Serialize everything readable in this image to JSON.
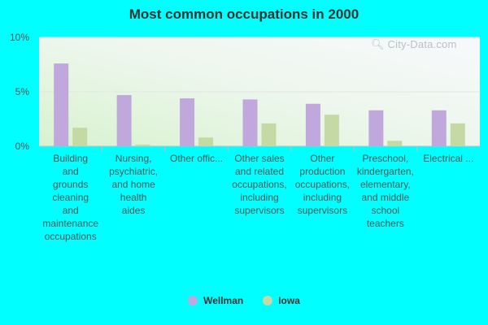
{
  "chart_data": {
    "type": "bar",
    "title": "Most common occupations in 2000",
    "categories": [
      [
        "Building",
        "and",
        "grounds",
        "cleaning",
        "and",
        "maintenance",
        "occupations"
      ],
      [
        "Nursing,",
        "psychiatric,",
        "and home",
        "health",
        "aides"
      ],
      [
        "Other offic..."
      ],
      [
        "Other sales",
        "and related",
        "occupations,",
        "including",
        "supervisors"
      ],
      [
        "Other",
        "production",
        "occupations,",
        "including",
        "supervisors"
      ],
      [
        "Preschool,",
        "kindergarten,",
        "elementary,",
        "and middle",
        "school",
        "teachers"
      ],
      [
        "Electrical ..."
      ]
    ],
    "series": [
      {
        "name": "Wellman",
        "color": "#c0a8dc",
        "values": [
          7.6,
          4.7,
          4.4,
          4.3,
          3.9,
          3.3,
          3.3
        ]
      },
      {
        "name": "Iowa",
        "color": "#c5d9a5",
        "values": [
          1.7,
          0.15,
          0.8,
          2.1,
          2.9,
          0.5,
          2.1
        ]
      }
    ],
    "yticks": [
      "0%",
      "5%",
      "10%"
    ],
    "ylim": [
      0,
      10
    ],
    "grid": true,
    "legend_position": "bottom-center"
  },
  "watermark": "City-Data.com"
}
